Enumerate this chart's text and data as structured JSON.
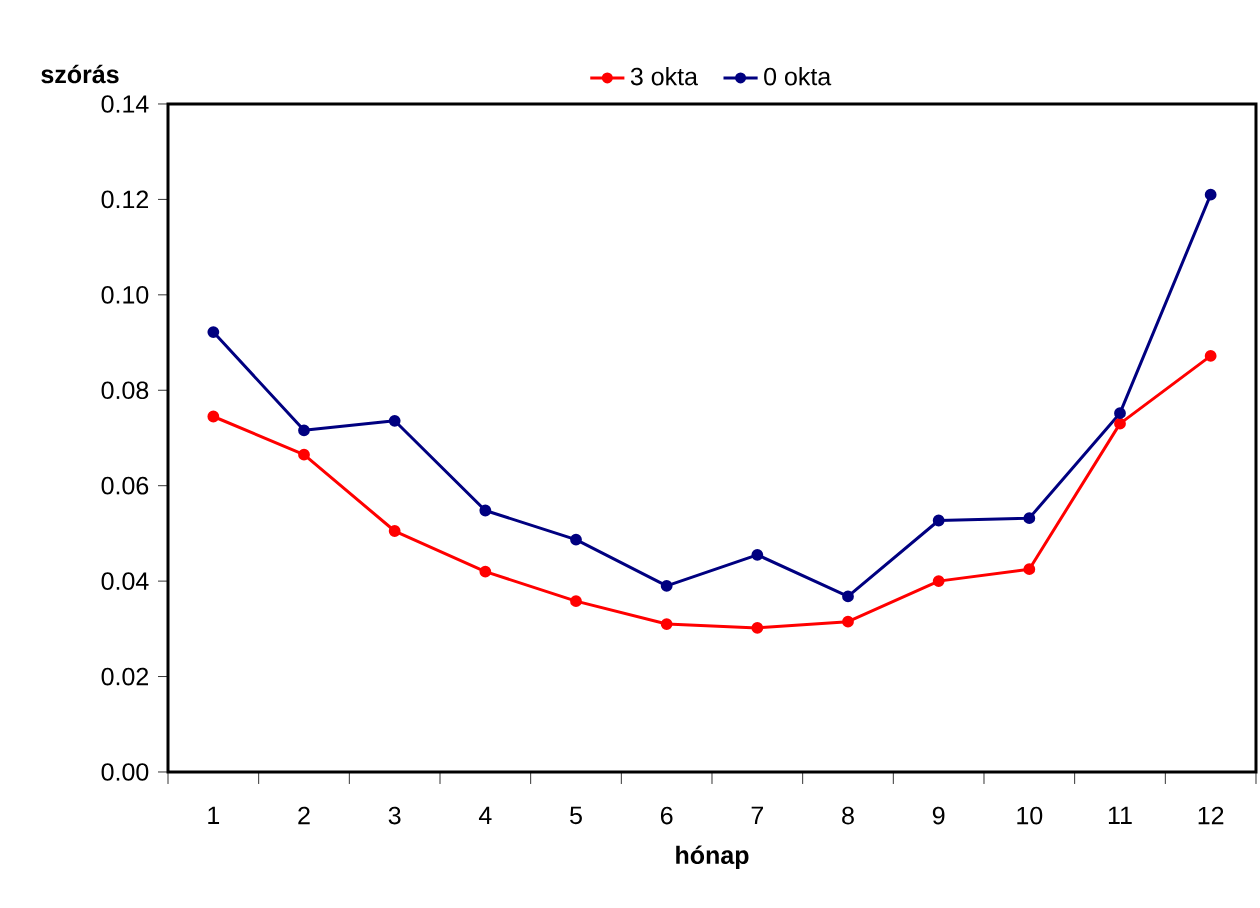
{
  "chart_data": {
    "type": "line",
    "xlabel": "hónap",
    "ylabel": "szórás",
    "categories": [
      "1",
      "2",
      "3",
      "4",
      "5",
      "6",
      "7",
      "8",
      "9",
      "10",
      "11",
      "12"
    ],
    "series": [
      {
        "name": "3 okta",
        "color": "#ff0000",
        "values": [
          0.0745,
          0.0665,
          0.0505,
          0.042,
          0.0358,
          0.031,
          0.0302,
          0.0315,
          0.04,
          0.0425,
          0.073,
          0.0872
        ]
      },
      {
        "name": "0 okta",
        "color": "#000080",
        "values": [
          0.0922,
          0.0716,
          0.0736,
          0.0548,
          0.0487,
          0.039,
          0.0455,
          0.0368,
          0.0527,
          0.0532,
          0.0752,
          0.121
        ]
      }
    ],
    "ylim": [
      0,
      0.14
    ],
    "yticks": [
      {
        "value": 0,
        "label": "0.00"
      },
      {
        "value": 0.02,
        "label": "0.02"
      },
      {
        "value": 0.04,
        "label": "0.04"
      },
      {
        "value": 0.06,
        "label": "0.06"
      },
      {
        "value": 0.08,
        "label": "0.08"
      },
      {
        "value": 0.1,
        "label": "0.10"
      },
      {
        "value": 0.12,
        "label": "0.12"
      },
      {
        "value": 0.14,
        "label": "0.14"
      }
    ],
    "grid": false,
    "legend": "top",
    "marker": "circle",
    "line_style": "solid"
  }
}
